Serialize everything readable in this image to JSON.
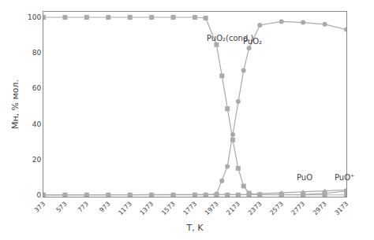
{
  "chart_data": {
    "type": "line",
    "xlabel": "T, K",
    "ylabel": "Mн, % мол.",
    "color": "#aaaaaa",
    "grid": false,
    "xlim": [
      373,
      3173
    ],
    "ylim": [
      -1,
      103
    ],
    "xticks": [
      373,
      573,
      773,
      973,
      1173,
      1373,
      1573,
      1773,
      1973,
      2173,
      2373,
      2573,
      2773,
      2973,
      3173
    ],
    "yticks": [
      0,
      20,
      40,
      60,
      80,
      100
    ],
    "series": [
      {
        "marker": "square",
        "x": [
          373,
          573,
          773,
          973,
          1173,
          1373,
          1573,
          1773,
          1873,
          1973,
          2023,
          2073,
          2123,
          2173,
          2223,
          2273,
          2373,
          2573,
          2773,
          2973,
          3173
        ],
        "values": [
          99.9,
          99.9,
          99.9,
          99.9,
          99.9,
          99.9,
          99.9,
          99.9,
          99.5,
          84.5,
          67.0,
          48.5,
          31.0,
          15.0,
          5.0,
          1.0,
          0.1,
          0.0,
          0.0,
          0.0,
          0.0
        ]
      },
      {
        "marker": "circle",
        "x": [
          373,
          573,
          773,
          973,
          1173,
          1373,
          1573,
          1773,
          1873,
          1973,
          2023,
          2073,
          2123,
          2173,
          2223,
          2273,
          2373,
          2573,
          2773,
          2973,
          3173
        ],
        "values": [
          0.0,
          0.0,
          0.0,
          0.0,
          0.0,
          0.0,
          0.0,
          0.0,
          0.0,
          0.5,
          8.0,
          16.0,
          34.0,
          52.5,
          70.0,
          82.5,
          95.5,
          97.5,
          97.0,
          96.0,
          93.0
        ]
      },
      {
        "marker": "triangle-up",
        "x": [
          373,
          573,
          773,
          973,
          1173,
          1373,
          1573,
          1773,
          1873,
          1973,
          2073,
          2173,
          2273,
          2373,
          2573,
          2773,
          2973,
          3173
        ],
        "values": [
          0.0,
          0.0,
          0.0,
          0.0,
          0.0,
          0.0,
          0.0,
          0.0,
          0.0,
          0.0,
          0.05,
          0.1,
          0.3,
          0.7,
          1.2,
          1.7,
          2.2,
          2.8
        ]
      },
      {
        "marker": "square",
        "x": [
          373,
          573,
          773,
          973,
          1173,
          1373,
          1573,
          1773,
          1873,
          1973,
          2073,
          2173,
          2273,
          2373,
          2573,
          2773,
          2973,
          3173
        ],
        "values": [
          0.0,
          0.0,
          0.0,
          0.0,
          0.0,
          0.0,
          0.0,
          0.0,
          0.0,
          0.0,
          0.0,
          0.0,
          0.0,
          0.05,
          0.1,
          0.3,
          0.8,
          2.2
        ]
      }
    ],
    "annotations": [
      {
        "text": "PuO₂(cond.)",
        "x": 1870,
        "y": 85
      },
      {
        "text": "PuO₂",
        "x": 2200,
        "y": 83
      },
      {
        "text": "PuO",
        "x": 2700,
        "y": 6.5
      },
      {
        "text": "PuO⁺",
        "x": 3050,
        "y": 6.5
      }
    ]
  }
}
